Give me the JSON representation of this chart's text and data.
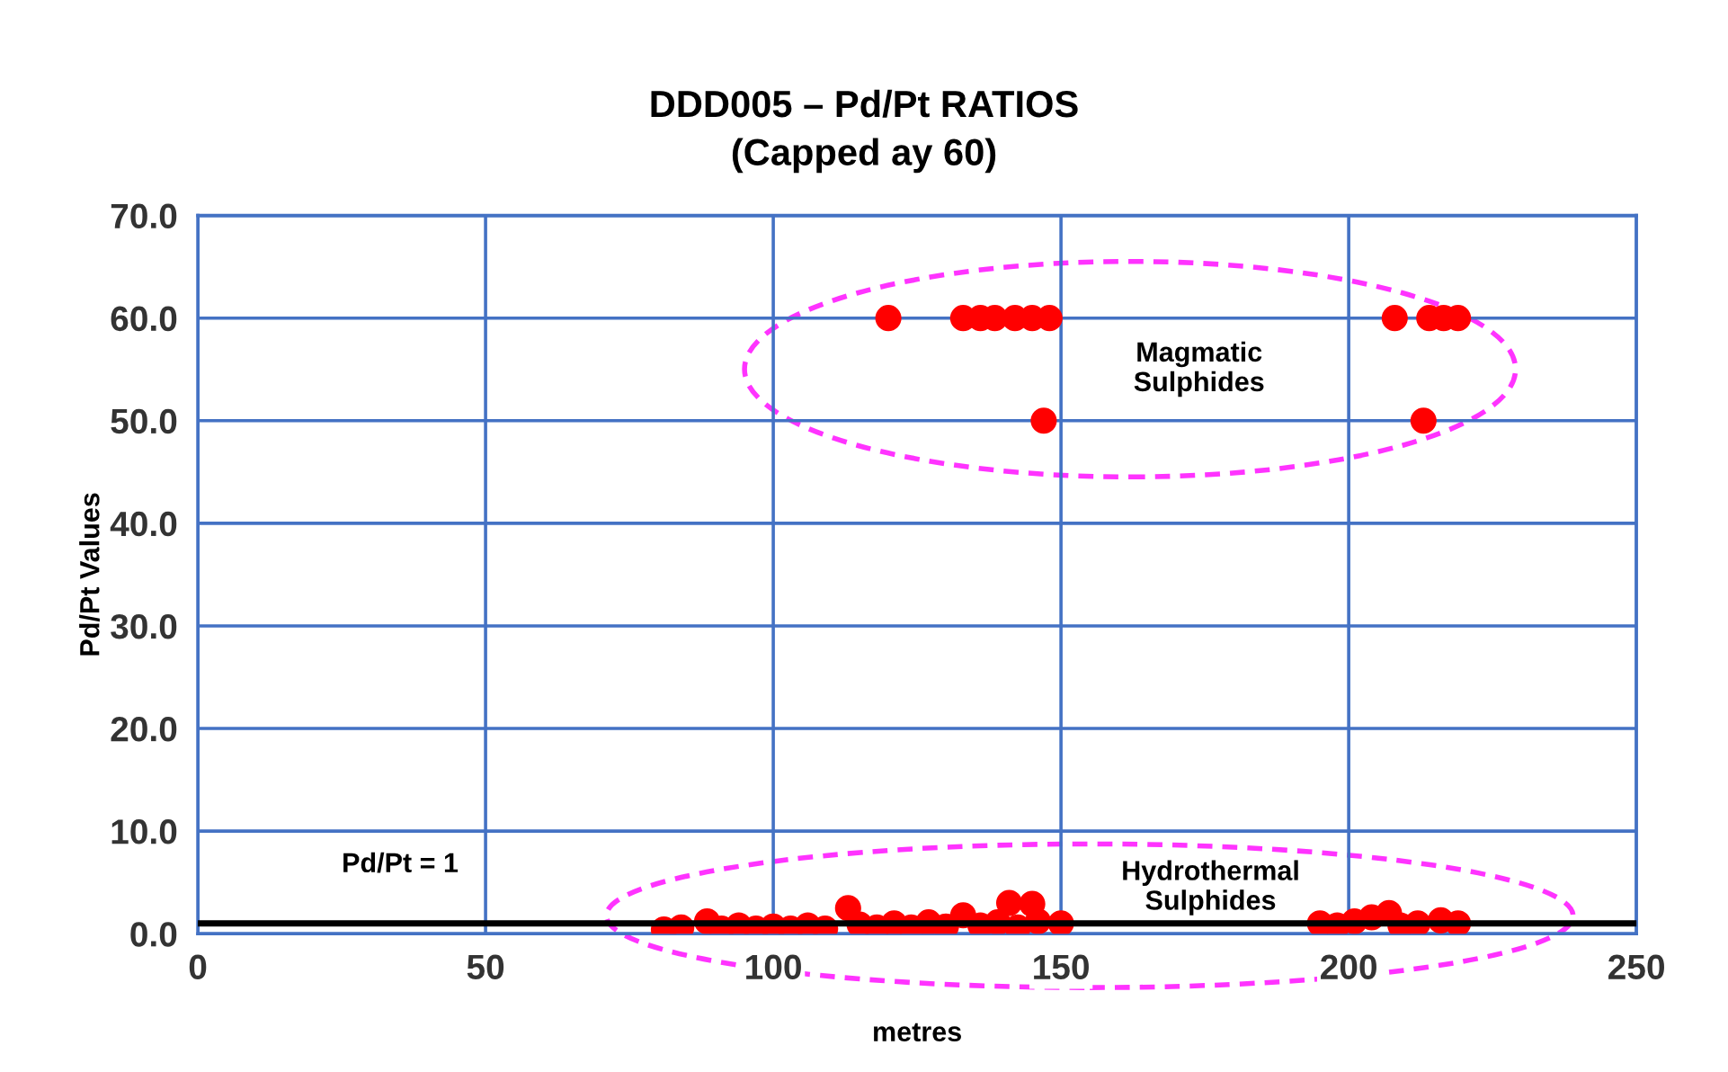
{
  "chart_data": {
    "type": "scatter",
    "title": "DDD005 – Pd/Pt RATIOS",
    "subtitle": "(Capped ay 60)",
    "xlabel": "metres",
    "ylabel": "Pd/Pt Values",
    "series": [
      {
        "color": "#ff0000",
        "x": [
          81,
          84,
          88.5,
          91,
          94,
          97,
          100,
          103,
          106,
          109,
          113,
          115,
          118,
          121,
          124,
          127,
          130,
          133,
          136,
          139,
          141,
          142.5,
          145,
          146,
          150,
          195,
          198,
          201,
          204,
          207,
          209,
          212,
          216,
          219,
          120,
          133,
          136,
          138.5,
          142,
          145,
          148,
          147,
          208,
          214,
          216.5,
          219,
          213
        ],
        "values": [
          0.4,
          0.6,
          1.2,
          0.5,
          0.8,
          0.5,
          0.7,
          0.5,
          0.8,
          0.5,
          2.5,
          0.9,
          0.6,
          1.0,
          0.6,
          1.1,
          0.7,
          1.8,
          0.8,
          1.1,
          3.0,
          0.6,
          2.9,
          1.2,
          1.0,
          1.0,
          0.8,
          1.2,
          1.6,
          2.0,
          0.8,
          1.0,
          1.3,
          1.0,
          60,
          60,
          60,
          60,
          60,
          60,
          60,
          50,
          60,
          60,
          60,
          60,
          50
        ]
      }
    ],
    "xlim": [
      0,
      250
    ],
    "xticks": [
      0,
      50,
      100,
      150,
      200,
      250
    ],
    "ylim": [
      0,
      70
    ],
    "yticks": [
      {
        "value": 0,
        "label": "0.0"
      },
      {
        "value": 10,
        "label": "10.0"
      },
      {
        "value": 20,
        "label": "20.0"
      },
      {
        "value": 30,
        "label": "30.0"
      },
      {
        "value": 40,
        "label": "40.0"
      },
      {
        "value": 50,
        "label": "50.0"
      },
      {
        "value": 60,
        "label": "60.0"
      },
      {
        "value": 70,
        "label": "70.0"
      }
    ],
    "ref_lines": [
      {
        "axis": "y",
        "value": 1,
        "label": "Pd/Pt = 1",
        "color": "#000000"
      }
    ],
    "annotations": [
      "Magmatic\nSulphides",
      "Hydrothermal\nSulphides"
    ],
    "grid": true,
    "marker": "circle",
    "legend": false
  }
}
